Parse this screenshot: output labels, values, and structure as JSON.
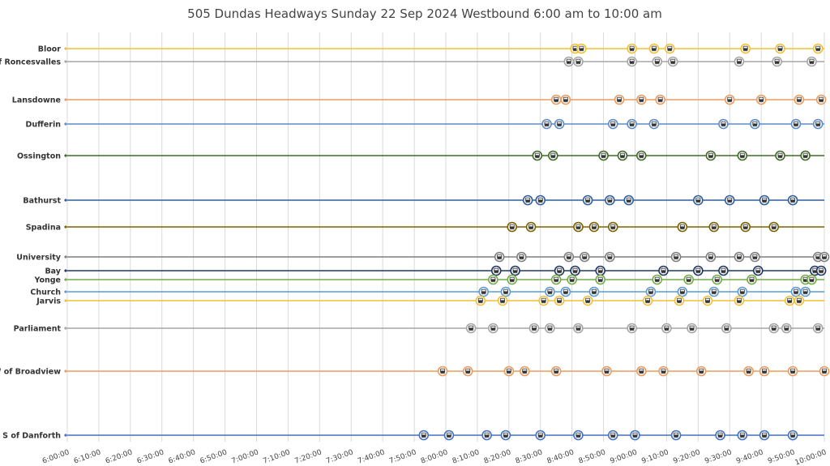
{
  "chart_data": {
    "type": "scatter",
    "title": "505 Dundas Headways Sunday 22 Sep 2024 Westbound 6:00 am to 10:00 am",
    "xlabel": "",
    "ylabel": "",
    "x_range": [
      "6:00:00",
      "10:00:00"
    ],
    "x_ticks": [
      "6:00:00",
      "6:10:00",
      "6:20:00",
      "6:30:00",
      "6:40:00",
      "6:50:00",
      "7:00:00",
      "7:10:00",
      "7:20:00",
      "7:30:00",
      "7:40:00",
      "7:50:00",
      "8:00:00",
      "8:10:00",
      "8:20:00",
      "8:30:00",
      "8:40:00",
      "8:50:00",
      "9:00:00",
      "9:10:00",
      "9:20:00",
      "9:30:00",
      "9:40:00",
      "9:50:00",
      "10:00:00"
    ],
    "grid": true,
    "marker": "streetcar-icon",
    "series": [
      {
        "name": "Bloor",
        "color": "#f2c037",
        "times": [
          "8:41",
          "8:43",
          "8:59",
          "9:06",
          "9:11",
          "9:35",
          "9:46",
          "9:58"
        ]
      },
      {
        "name": "E of Roncesvalles",
        "color": "#a6a6a6",
        "times": [
          "8:39",
          "8:42",
          "8:59",
          "9:07",
          "9:12",
          "9:33",
          "9:45",
          "9:56"
        ]
      },
      {
        "name": "Lansdowne",
        "color": "#ec9b5e",
        "times": [
          "8:35",
          "8:38",
          "8:55",
          "9:02",
          "9:08",
          "9:30",
          "9:40",
          "9:52",
          "9:59"
        ]
      },
      {
        "name": "Dufferin",
        "color": "#5b8ccc",
        "times": [
          "8:32",
          "8:36",
          "8:53",
          "8:59",
          "9:06",
          "9:28",
          "9:38",
          "9:51",
          "9:58"
        ]
      },
      {
        "name": "Ossington",
        "color": "#3f6b26",
        "times": [
          "8:29",
          "8:34",
          "8:50",
          "8:56",
          "9:02",
          "9:24",
          "9:34",
          "9:46",
          "9:54"
        ]
      },
      {
        "name": "Bathurst",
        "color": "#2e5fa3",
        "times": [
          "8:26",
          "8:30",
          "8:45",
          "8:52",
          "8:58",
          "9:20",
          "9:30",
          "9:41",
          "9:50"
        ]
      },
      {
        "name": "Spadina",
        "color": "#7a6300",
        "times": [
          "8:21",
          "8:27",
          "8:42",
          "8:47",
          "8:53",
          "9:15",
          "9:25",
          "9:35",
          "9:44"
        ]
      },
      {
        "name": "University",
        "color": "#7f7f7f",
        "times": [
          "8:17",
          "8:24",
          "8:39",
          "8:44",
          "8:52",
          "9:13",
          "9:24",
          "9:33",
          "9:38",
          "9:58",
          "10:00"
        ]
      },
      {
        "name": "Bay",
        "color": "#1f3864",
        "times": [
          "8:16",
          "8:22",
          "8:36",
          "8:41",
          "8:49",
          "9:09",
          "9:20",
          "9:28",
          "9:39",
          "9:57",
          "9:59"
        ]
      },
      {
        "name": "Yonge",
        "color": "#70ad47",
        "times": [
          "8:15",
          "8:21",
          "8:35",
          "8:40",
          "8:49",
          "9:07",
          "9:17",
          "9:26",
          "9:37",
          "9:54",
          "9:56"
        ]
      },
      {
        "name": "Church",
        "color": "#5b9bd5",
        "times": [
          "8:12",
          "8:19",
          "8:33",
          "8:38",
          "8:47",
          "9:05",
          "9:15",
          "9:25",
          "9:34",
          "9:51",
          "9:54"
        ]
      },
      {
        "name": "Jarvis",
        "color": "#f2c037",
        "times": [
          "8:11",
          "8:18",
          "8:31",
          "8:36",
          "8:45",
          "9:04",
          "9:14",
          "9:23",
          "9:33",
          "9:49",
          "9:52"
        ]
      },
      {
        "name": "Parliament",
        "color": "#a6a6a6",
        "times": [
          "8:08",
          "8:15",
          "8:28",
          "8:33",
          "8:42",
          "8:59",
          "9:10",
          "9:18",
          "9:29",
          "9:44",
          "9:48",
          "9:58"
        ]
      },
      {
        "name": "W of Broadview",
        "color": "#ec9b5e",
        "times": [
          "7:59",
          "8:07",
          "8:20",
          "8:25",
          "8:35",
          "8:51",
          "9:02",
          "9:09",
          "9:21",
          "9:36",
          "9:41",
          "9:50",
          "10:00"
        ]
      },
      {
        "name": "S of Danforth",
        "color": "#4472c4",
        "times": [
          "7:53",
          "8:01",
          "8:13",
          "8:19",
          "8:30",
          "8:42",
          "8:53",
          "9:00",
          "9:13",
          "9:27",
          "9:34",
          "9:41",
          "9:50"
        ]
      }
    ]
  }
}
